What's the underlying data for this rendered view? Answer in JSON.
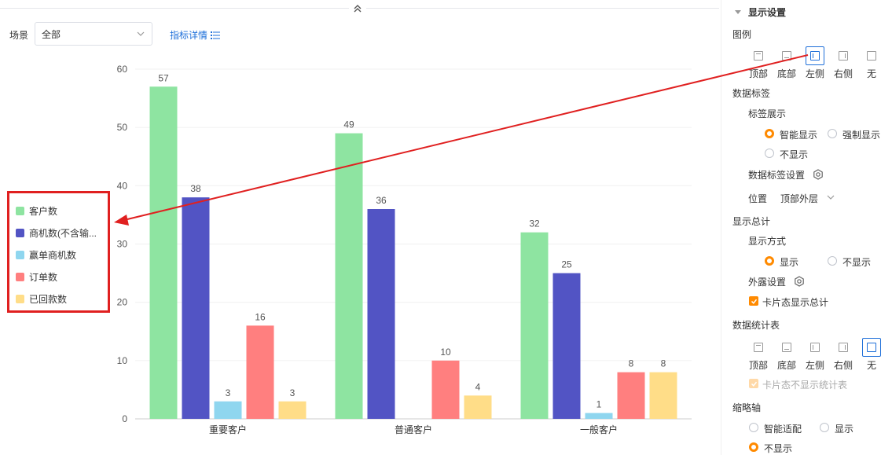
{
  "toolbar": {
    "scene_label": "场景",
    "scene_value": "全部",
    "metric_link": "指标详情"
  },
  "chart_data": {
    "type": "bar",
    "categories": [
      "重要客户",
      "普通客户",
      "一般客户"
    ],
    "series": [
      {
        "name": "客户数",
        "color": "#8ee4a1",
        "values": [
          57,
          49,
          32
        ]
      },
      {
        "name": "商机数(不含输...",
        "color": "#5254c4",
        "values": [
          38,
          36,
          25
        ]
      },
      {
        "name": "赢单商机数",
        "color": "#8fd6ef",
        "values": [
          3,
          null,
          1
        ]
      },
      {
        "name": "订单数",
        "color": "#ff7f7f",
        "values": [
          16,
          10,
          8
        ]
      },
      {
        "name": "已回款数",
        "color": "#ffdd88",
        "values": [
          3,
          4,
          8
        ]
      }
    ],
    "ylim": [
      0,
      60
    ],
    "yticks": [
      "0",
      "10",
      "20",
      "30",
      "40",
      "50",
      "60"
    ],
    "grid": true,
    "legend": "left"
  },
  "legend": {
    "items": [
      {
        "label": "客户数",
        "color": "#8ee4a1"
      },
      {
        "label": "商机数(不含输...",
        "color": "#5254c4"
      },
      {
        "label": "赢单商机数",
        "color": "#8fd6ef"
      },
      {
        "label": "订单数",
        "color": "#ff7f7f"
      },
      {
        "label": "已回款数",
        "color": "#ffdd88"
      }
    ]
  },
  "panel": {
    "title": "显示设置",
    "legend_title": "图例",
    "legend_opts": [
      "顶部",
      "底部",
      "左侧",
      "右侧",
      "无"
    ],
    "legend_selected": "左侧",
    "data_labels_title": "数据标签",
    "label_show_title": "标签展示",
    "label_smart": "智能显示",
    "label_force": "强制显示",
    "label_hide": "不显示",
    "label_settings": "数据标签设置",
    "position_label": "位置",
    "position_value": "顶部外层",
    "total_title": "显示总计",
    "total_mode_title": "显示方式",
    "total_show": "显示",
    "total_hide": "不显示",
    "expose_settings": "外露设置",
    "card_show_total": "卡片态显示总计",
    "stats_title": "数据统计表",
    "stats_opts": [
      "顶部",
      "底部",
      "左侧",
      "右侧",
      "无"
    ],
    "stats_selected": "无",
    "card_hide_stats": "卡片态不显示统计表",
    "thumb_title": "缩略轴",
    "thumb_smart": "智能适配",
    "thumb_show": "显示",
    "thumb_hide": "不显示"
  },
  "accent": "#ff8a00",
  "link_color": "#1e6fd9",
  "annotation_color": "#e02020"
}
